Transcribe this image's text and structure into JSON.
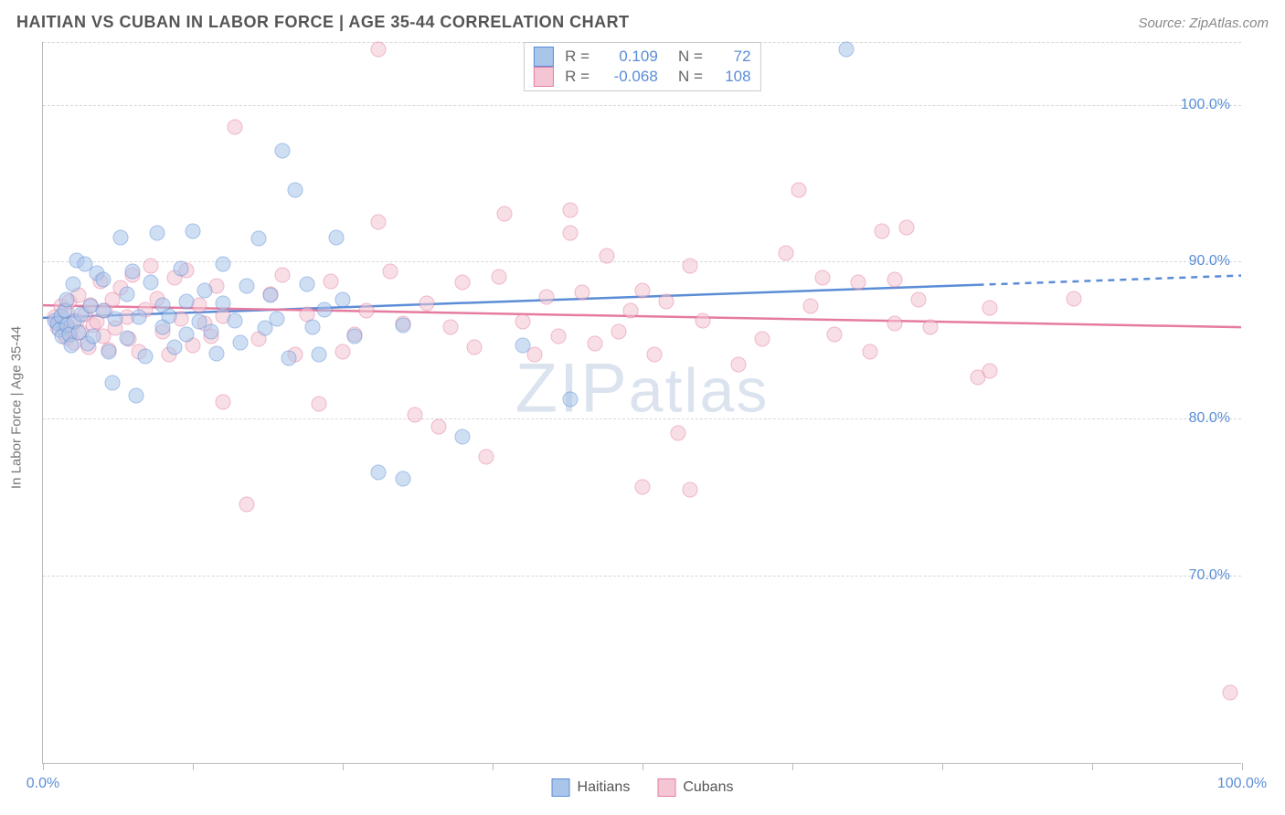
{
  "title": "HAITIAN VS CUBAN IN LABOR FORCE | AGE 35-44 CORRELATION CHART",
  "source": "Source: ZipAtlas.com",
  "ylabel": "In Labor Force | Age 35-44",
  "watermark": "ZIPatlas",
  "chart": {
    "type": "scatter",
    "xlim": [
      0,
      100
    ],
    "ylim": [
      58,
      104
    ],
    "xtick_positions": [
      0,
      12.5,
      25,
      37.5,
      50,
      62.5,
      75,
      87.5,
      100
    ],
    "xtick_labels": {
      "0": "0.0%",
      "100": "100.0%"
    },
    "ytick_positions": [
      70,
      80,
      90,
      100
    ],
    "ytick_labels": [
      "70.0%",
      "80.0%",
      "90.0%",
      "100.0%"
    ],
    "grid_positions": [
      70,
      80,
      90,
      100,
      104
    ],
    "grid_color": "#d8d8d8",
    "background_color": "#ffffff",
    "axis_color": "#bbbbbb",
    "marker_size": 17,
    "marker_opacity": 0.55,
    "series": [
      {
        "name": "Haitians",
        "color_fill": "#a9c5ea",
        "color_stroke": "#5b8dd6",
        "R": "0.109",
        "N": "72",
        "trend": {
          "y0": 86.4,
          "y1": 89.1,
          "x_solid_end": 78,
          "dashed": true,
          "width": 2.5
        },
        "points": [
          [
            1,
            86.2
          ],
          [
            1.2,
            86
          ],
          [
            1.4,
            85.6
          ],
          [
            1.5,
            86.5
          ],
          [
            1.6,
            85.2
          ],
          [
            1.8,
            86.8
          ],
          [
            2,
            85.9
          ],
          [
            2,
            87.5
          ],
          [
            2.2,
            85.3
          ],
          [
            2.4,
            84.6
          ],
          [
            2.5,
            88.5
          ],
          [
            2.6,
            86.1
          ],
          [
            2.8,
            90
          ],
          [
            3,
            85.4
          ],
          [
            3.2,
            86.6
          ],
          [
            3.5,
            89.8
          ],
          [
            3.7,
            84.7
          ],
          [
            4,
            87.1
          ],
          [
            4.2,
            85.2
          ],
          [
            4.5,
            89.2
          ],
          [
            5,
            86.8
          ],
          [
            5,
            88.8
          ],
          [
            5.5,
            84.2
          ],
          [
            5.8,
            82.2
          ],
          [
            6,
            86.3
          ],
          [
            6.5,
            91.5
          ],
          [
            7,
            87.9
          ],
          [
            7,
            85.1
          ],
          [
            7.5,
            89.3
          ],
          [
            8,
            86.4
          ],
          [
            8.5,
            83.9
          ],
          [
            7.8,
            81.4
          ],
          [
            9,
            88.6
          ],
          [
            9.5,
            91.8
          ],
          [
            10,
            85.8
          ],
          [
            10,
            87.2
          ],
          [
            10.5,
            86.5
          ],
          [
            11,
            84.5
          ],
          [
            11.5,
            89.5
          ],
          [
            12,
            87.4
          ],
          [
            12,
            85.3
          ],
          [
            12.5,
            91.9
          ],
          [
            13,
            86.1
          ],
          [
            13.5,
            88.1
          ],
          [
            14,
            85.5
          ],
          [
            14.5,
            84.1
          ],
          [
            15,
            89.8
          ],
          [
            15,
            87.3
          ],
          [
            16,
            86.2
          ],
          [
            16.5,
            84.8
          ],
          [
            17,
            88.4
          ],
          [
            18,
            91.4
          ],
          [
            18.5,
            85.7
          ],
          [
            19,
            87.8
          ],
          [
            19.5,
            86.3
          ],
          [
            20,
            97
          ],
          [
            20.5,
            83.8
          ],
          [
            21,
            94.5
          ],
          [
            22,
            88.5
          ],
          [
            22.5,
            85.8
          ],
          [
            23,
            84.0
          ],
          [
            23.5,
            86.9
          ],
          [
            24.5,
            91.5
          ],
          [
            25,
            87.5
          ],
          [
            26,
            85.2
          ],
          [
            28,
            76.5
          ],
          [
            30,
            85.9
          ],
          [
            30,
            76.1
          ],
          [
            35,
            78.8
          ],
          [
            40,
            84.6
          ],
          [
            44,
            81.2
          ],
          [
            67,
            103.5
          ]
        ]
      },
      {
        "name": "Cubans",
        "color_fill": "#f4c6d3",
        "color_stroke": "#e57ba0",
        "R": "-0.068",
        "N": "108",
        "trend": {
          "y0": 87.2,
          "y1": 85.8,
          "x_solid_end": 100,
          "dashed": false,
          "width": 2.5
        },
        "points": [
          [
            1,
            86.4
          ],
          [
            1.2,
            85.8
          ],
          [
            1.5,
            87.1
          ],
          [
            1.6,
            86.0
          ],
          [
            1.8,
            85.3
          ],
          [
            2,
            86.8
          ],
          [
            2,
            85.1
          ],
          [
            2.2,
            87.4
          ],
          [
            2.4,
            85.6
          ],
          [
            2.6,
            84.8
          ],
          [
            2.8,
            86.2
          ],
          [
            3,
            87.8
          ],
          [
            3.2,
            85.4
          ],
          [
            3.5,
            86.6
          ],
          [
            3.8,
            84.5
          ],
          [
            4,
            87.2
          ],
          [
            4.2,
            85.9
          ],
          [
            4.5,
            86.1
          ],
          [
            4.8,
            88.7
          ],
          [
            5,
            85.2
          ],
          [
            5.2,
            86.8
          ],
          [
            5.5,
            84.3
          ],
          [
            5.8,
            87.5
          ],
          [
            6,
            85.7
          ],
          [
            6.5,
            88.3
          ],
          [
            7,
            86.4
          ],
          [
            7.2,
            85.0
          ],
          [
            7.5,
            89.1
          ],
          [
            8,
            84.2
          ],
          [
            8.5,
            86.9
          ],
          [
            9,
            89.7
          ],
          [
            9.5,
            87.6
          ],
          [
            10,
            85.5
          ],
          [
            10.5,
            84.0
          ],
          [
            11,
            88.9
          ],
          [
            11.5,
            86.3
          ],
          [
            12,
            89.4
          ],
          [
            12.5,
            84.6
          ],
          [
            13,
            87.2
          ],
          [
            13.5,
            86.0
          ],
          [
            14,
            85.2
          ],
          [
            14.5,
            88.4
          ],
          [
            15,
            86.5
          ],
          [
            15,
            81
          ],
          [
            16,
            98.5
          ],
          [
            17,
            74.5
          ],
          [
            18,
            85.0
          ],
          [
            19,
            87.9
          ],
          [
            20,
            89.1
          ],
          [
            21,
            84.0
          ],
          [
            22,
            86.6
          ],
          [
            23,
            80.9
          ],
          [
            24,
            88.7
          ],
          [
            25,
            84.2
          ],
          [
            26,
            85.3
          ],
          [
            27,
            86.8
          ],
          [
            28,
            92.5
          ],
          [
            28,
            103.5
          ],
          [
            29,
            89.3
          ],
          [
            30,
            86.0
          ],
          [
            31,
            80.2
          ],
          [
            32,
            87.3
          ],
          [
            33,
            79.4
          ],
          [
            34,
            85.8
          ],
          [
            35,
            88.6
          ],
          [
            36,
            84.5
          ],
          [
            37,
            77.5
          ],
          [
            38,
            89.0
          ],
          [
            38.5,
            93
          ],
          [
            40,
            86.1
          ],
          [
            41,
            84.0
          ],
          [
            42,
            87.7
          ],
          [
            43,
            85.2
          ],
          [
            44,
            91.8
          ],
          [
            44,
            93.2
          ],
          [
            45,
            88.0
          ],
          [
            46,
            84.7
          ],
          [
            47,
            90.3
          ],
          [
            48,
            85.5
          ],
          [
            49,
            86.8
          ],
          [
            50,
            88.1
          ],
          [
            50,
            75.6
          ],
          [
            51,
            84.0
          ],
          [
            52,
            87.4
          ],
          [
            53,
            79
          ],
          [
            54,
            89.7
          ],
          [
            54,
            75.4
          ],
          [
            55,
            86.2
          ],
          [
            58,
            83.4
          ],
          [
            60,
            85.0
          ],
          [
            62,
            90.5
          ],
          [
            63,
            94.5
          ],
          [
            64,
            87.1
          ],
          [
            65,
            88.9
          ],
          [
            66,
            85.3
          ],
          [
            68,
            88.6
          ],
          [
            69,
            84.2
          ],
          [
            70,
            91.9
          ],
          [
            71,
            86.0
          ],
          [
            71,
            88.8
          ],
          [
            72,
            92.1
          ],
          [
            73,
            87.5
          ],
          [
            74,
            85.8
          ],
          [
            78,
            82.6
          ],
          [
            79,
            87.0
          ],
          [
            79,
            83.0
          ],
          [
            86,
            87.6
          ],
          [
            99,
            62.5
          ]
        ]
      }
    ]
  },
  "legend_top_label_R": "R =",
  "legend_top_label_N": "N =",
  "legend_bottom": [
    "Haitians",
    "Cubans"
  ]
}
